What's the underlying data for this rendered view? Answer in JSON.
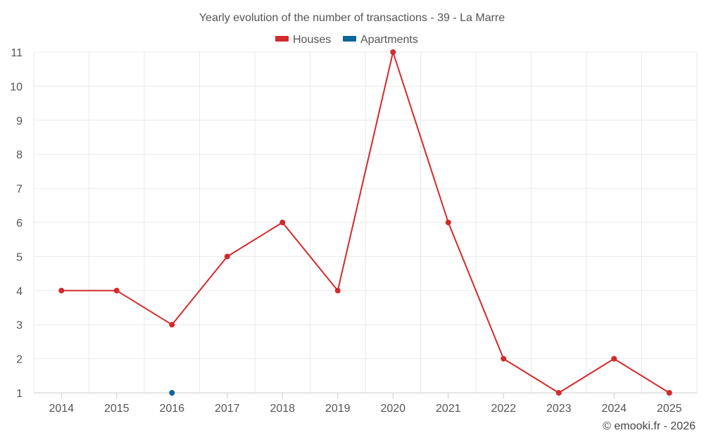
{
  "chart_data": {
    "type": "line",
    "title": "Yearly evolution of the number of transactions - 39 - La Marre",
    "categories": [
      "2014",
      "2015",
      "2016",
      "2017",
      "2018",
      "2019",
      "2020",
      "2021",
      "2022",
      "2023",
      "2024",
      "2025"
    ],
    "series": [
      {
        "name": "Houses",
        "color": "#d42a2a",
        "values": [
          4,
          4,
          3,
          5,
          6,
          4,
          11,
          6,
          2,
          1,
          2,
          1
        ]
      },
      {
        "name": "Apartments",
        "color": "#0b6699",
        "values": [
          null,
          null,
          1,
          null,
          null,
          null,
          null,
          null,
          null,
          null,
          null,
          null
        ]
      }
    ],
    "yticks": [
      "1",
      "2",
      "3",
      "4",
      "5",
      "6",
      "7",
      "8",
      "9",
      "10",
      "11"
    ],
    "ylim": [
      1,
      11
    ],
    "xlabel": "",
    "ylabel": "",
    "grid": true,
    "legend": "top-center"
  },
  "credit": "© emooki.fr - 2026"
}
